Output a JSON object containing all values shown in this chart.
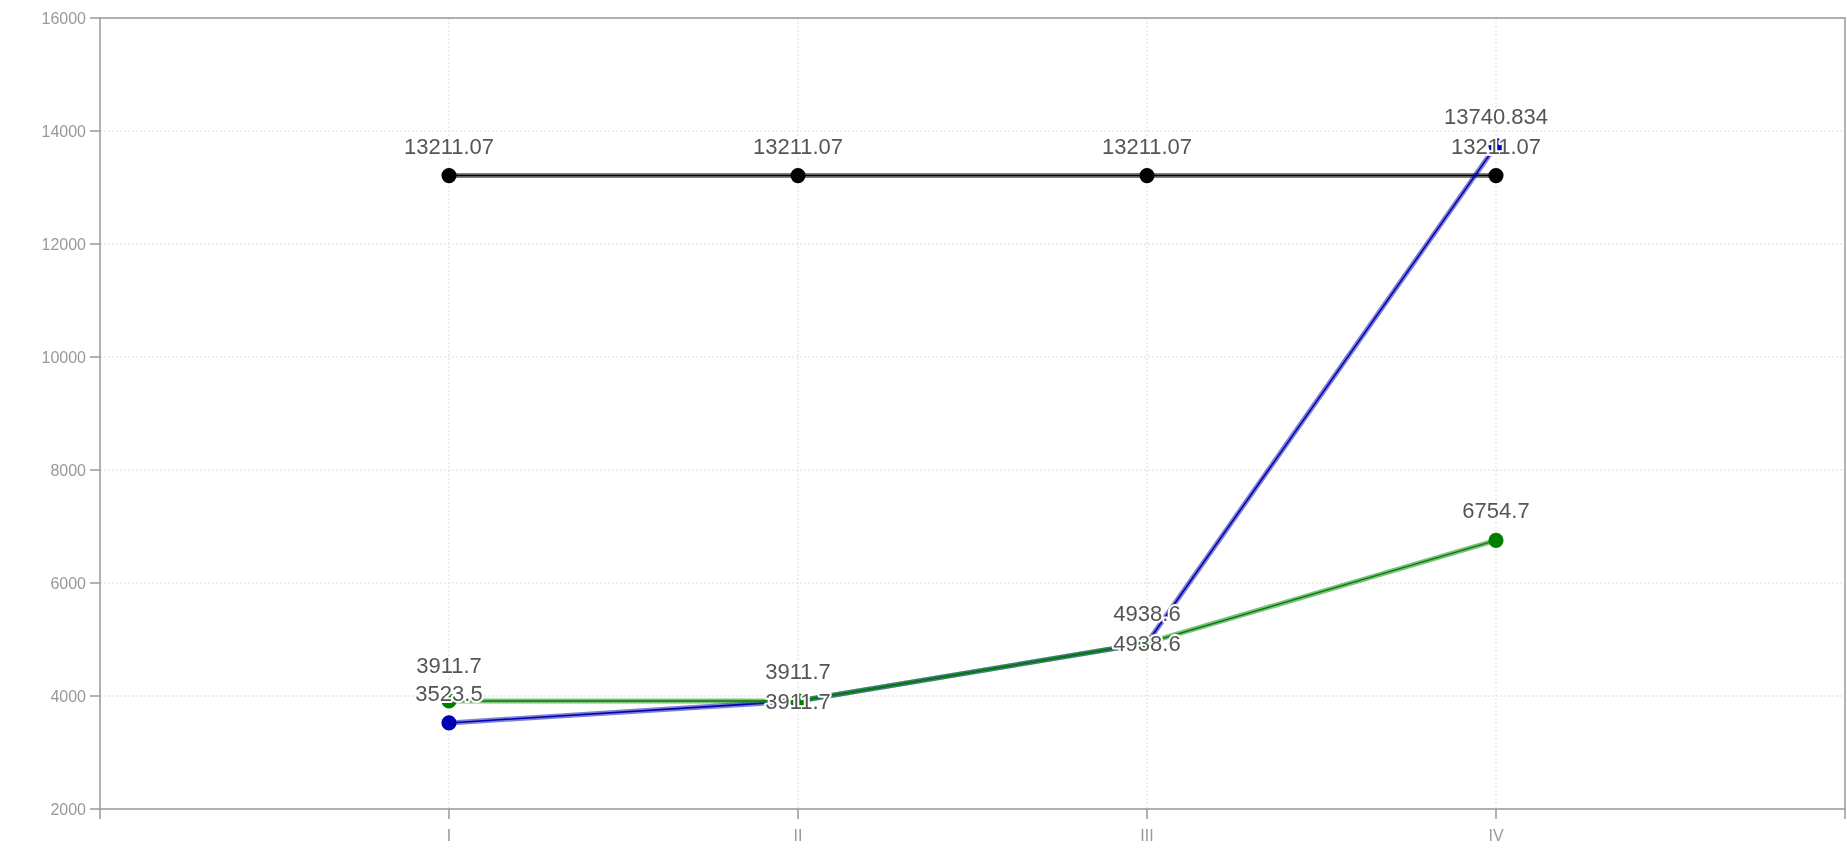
{
  "chart_data": {
    "type": "line",
    "categories": [
      "I",
      "II",
      "III",
      "IV"
    ],
    "series": [
      {
        "color": "#000000",
        "values": [
          13211.07,
          13211.07,
          13211.07,
          13211.07
        ]
      },
      {
        "color": "#0000b0",
        "values": [
          3523.5,
          3911.7,
          4938.6,
          13740.834
        ]
      },
      {
        "color": "#008000",
        "values": [
          3911.7,
          3911.7,
          4938.6,
          6754.7
        ]
      }
    ],
    "ylim": [
      2000,
      16000
    ],
    "yticks": [
      2000,
      4000,
      6000,
      8000,
      10000,
      12000,
      14000,
      16000
    ],
    "grid": true,
    "marker": "circle",
    "data_labels": true
  }
}
